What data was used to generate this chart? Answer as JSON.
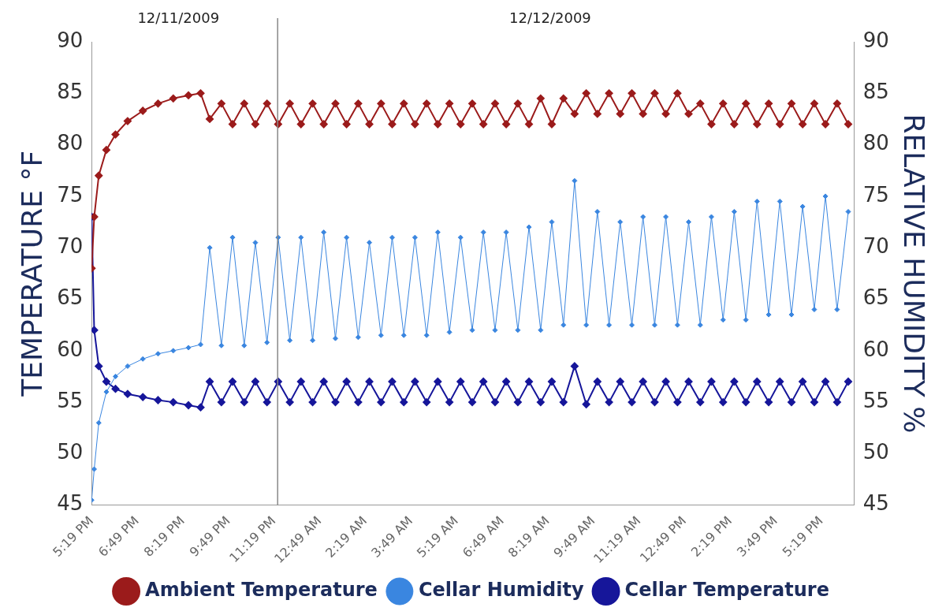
{
  "chart_data": {
    "type": "line",
    "ylabel": "TEMPERATURE °F",
    "y2label": "RELATIVE HUMIDITY %",
    "x": [
      "2009-12-11T17:19",
      "2009-12-11T17:24",
      "2009-12-11T17:33",
      "2009-12-11T17:48",
      "2009-12-11T18:06",
      "2009-12-11T18:30",
      "2009-12-11T19:00",
      "2009-12-11T19:30",
      "2009-12-11T20:00",
      "2009-12-11T20:30",
      "2009-12-11T20:54",
      "2009-12-11T21:12",
      "2009-12-11T21:35",
      "2009-12-11T21:57",
      "2009-12-11T22:20",
      "2009-12-11T22:42",
      "2009-12-11T23:05",
      "2009-12-11T23:27",
      "2009-12-11T23:50",
      "2009-12-12T00:12",
      "2009-12-12T00:35",
      "2009-12-12T00:57",
      "2009-12-12T01:20",
      "2009-12-12T01:42",
      "2009-12-12T02:05",
      "2009-12-12T02:27",
      "2009-12-12T02:50",
      "2009-12-12T03:12",
      "2009-12-12T03:35",
      "2009-12-12T03:57",
      "2009-12-12T04:20",
      "2009-12-12T04:42",
      "2009-12-12T05:05",
      "2009-12-12T05:27",
      "2009-12-12T05:50",
      "2009-12-12T06:12",
      "2009-12-12T06:35",
      "2009-12-12T06:57",
      "2009-12-12T07:20",
      "2009-12-12T07:42",
      "2009-12-12T08:05",
      "2009-12-12T08:27",
      "2009-12-12T08:50",
      "2009-12-12T09:12",
      "2009-12-12T09:35",
      "2009-12-12T09:57",
      "2009-12-12T10:20",
      "2009-12-12T10:42",
      "2009-12-12T11:05",
      "2009-12-12T11:27",
      "2009-12-12T11:50",
      "2009-12-12T12:12",
      "2009-12-12T12:35",
      "2009-12-12T12:57",
      "2009-12-12T13:20",
      "2009-12-12T13:42",
      "2009-12-12T14:05",
      "2009-12-12T14:27",
      "2009-12-12T14:50",
      "2009-12-12T15:12",
      "2009-12-12T15:35",
      "2009-12-12T15:57",
      "2009-12-12T16:20",
      "2009-12-12T16:42",
      "2009-12-12T17:05",
      "2009-12-12T17:27",
      "2009-12-12T17:50",
      "2009-12-12T18:12"
    ],
    "series": [
      {
        "name": "Ambient Temperature",
        "color": "#9b1b1b",
        "values": [
          68,
          73,
          77,
          79.5,
          81,
          82.3,
          83.3,
          84,
          84.5,
          84.8,
          85,
          82.5,
          84,
          82,
          84,
          82,
          84,
          82,
          84,
          82,
          84,
          82,
          84,
          82,
          84,
          82,
          84,
          82,
          84,
          82,
          84,
          82,
          84,
          82,
          84,
          82,
          84,
          82,
          84,
          82,
          84.5,
          82,
          84.5,
          83,
          85,
          83,
          85,
          83,
          85,
          83,
          85,
          83,
          85,
          83,
          84,
          82,
          84,
          82,
          84,
          82,
          84,
          82,
          84,
          82,
          84,
          82,
          84,
          82
        ]
      },
      {
        "name": "Cellar Humidity",
        "color": "#3a86e0",
        "axis": "y2",
        "values": [
          45.5,
          48.5,
          53,
          56,
          57.5,
          58.5,
          59.2,
          59.7,
          60,
          60.3,
          60.6,
          70,
          60.5,
          71,
          60.5,
          70.5,
          60.8,
          71,
          61,
          71,
          61,
          71.5,
          61.2,
          71,
          61.3,
          70.5,
          61.5,
          71,
          61.5,
          71,
          61.5,
          71.5,
          61.8,
          71,
          62,
          71.5,
          62,
          71.5,
          62,
          72,
          62,
          72.5,
          62.5,
          76.5,
          62.5,
          73.5,
          62.5,
          72.5,
          62.5,
          73,
          62.5,
          73,
          62.5,
          72.5,
          62.5,
          73,
          63,
          73.5,
          63,
          74.5,
          63.5,
          74.5,
          63.5,
          74,
          64,
          75,
          64,
          73.5
        ]
      },
      {
        "name": "Cellar Temperature",
        "color": "#16169a",
        "values": [
          73,
          62,
          58.5,
          57,
          56.3,
          55.8,
          55.5,
          55.2,
          55,
          54.7,
          54.5,
          57,
          55,
          57,
          55,
          57,
          55,
          57,
          55,
          57,
          55,
          57,
          55,
          57,
          55,
          57,
          55,
          57,
          55,
          57,
          55,
          57,
          55,
          57,
          55,
          57,
          55,
          57,
          55,
          57,
          55,
          57,
          55,
          58.5,
          54.8,
          57,
          55,
          57,
          55,
          57,
          55,
          57,
          55,
          57,
          55,
          57,
          55,
          57,
          55,
          57,
          55,
          57,
          55,
          57,
          55,
          57,
          55,
          57
        ]
      }
    ],
    "xlim": [
      "2009-12-11T17:19",
      "2009-12-12T18:24"
    ],
    "xticks": [
      {
        "value": "2009-12-11T17:19",
        "label": "5:19 PM"
      },
      {
        "value": "2009-12-11T18:49",
        "label": "6:49 PM"
      },
      {
        "value": "2009-12-11T20:19",
        "label": "8:19 PM"
      },
      {
        "value": "2009-12-11T21:49",
        "label": "9:49 PM"
      },
      {
        "value": "2009-12-11T23:19",
        "label": "11:19 PM"
      },
      {
        "value": "2009-12-12T00:49",
        "label": "12:49 AM"
      },
      {
        "value": "2009-12-12T02:19",
        "label": "2:19 AM"
      },
      {
        "value": "2009-12-12T03:49",
        "label": "3:49 AM"
      },
      {
        "value": "2009-12-12T05:19",
        "label": "5:19 AM"
      },
      {
        "value": "2009-12-12T06:49",
        "label": "6:49 AM"
      },
      {
        "value": "2009-12-12T08:19",
        "label": "8:19 AM"
      },
      {
        "value": "2009-12-12T09:49",
        "label": "9:49 AM"
      },
      {
        "value": "2009-12-12T11:19",
        "label": "11:19 AM"
      },
      {
        "value": "2009-12-12T12:49",
        "label": "12:49 PM"
      },
      {
        "value": "2009-12-12T14:19",
        "label": "2:19 PM"
      },
      {
        "value": "2009-12-12T15:49",
        "label": "3:49 PM"
      },
      {
        "value": "2009-12-12T17:19",
        "label": "5:19 PM"
      }
    ],
    "ylim": [
      45,
      90
    ],
    "yticks": [
      45,
      50,
      55,
      60,
      65,
      70,
      75,
      80,
      85,
      90
    ],
    "y2lim": [
      45,
      90
    ],
    "y2ticks": [
      45,
      50,
      55,
      60,
      65,
      70,
      75,
      80,
      85,
      90
    ],
    "ref_lines": [
      {
        "axis": "x",
        "value": "2009-12-11T23:26",
        "color": "#888888"
      }
    ],
    "annotations": [
      "12/11/2009",
      "12/12/2009"
    ],
    "marker": "diamond",
    "line_style": "solid",
    "grid": false,
    "legend": "bottom"
  }
}
